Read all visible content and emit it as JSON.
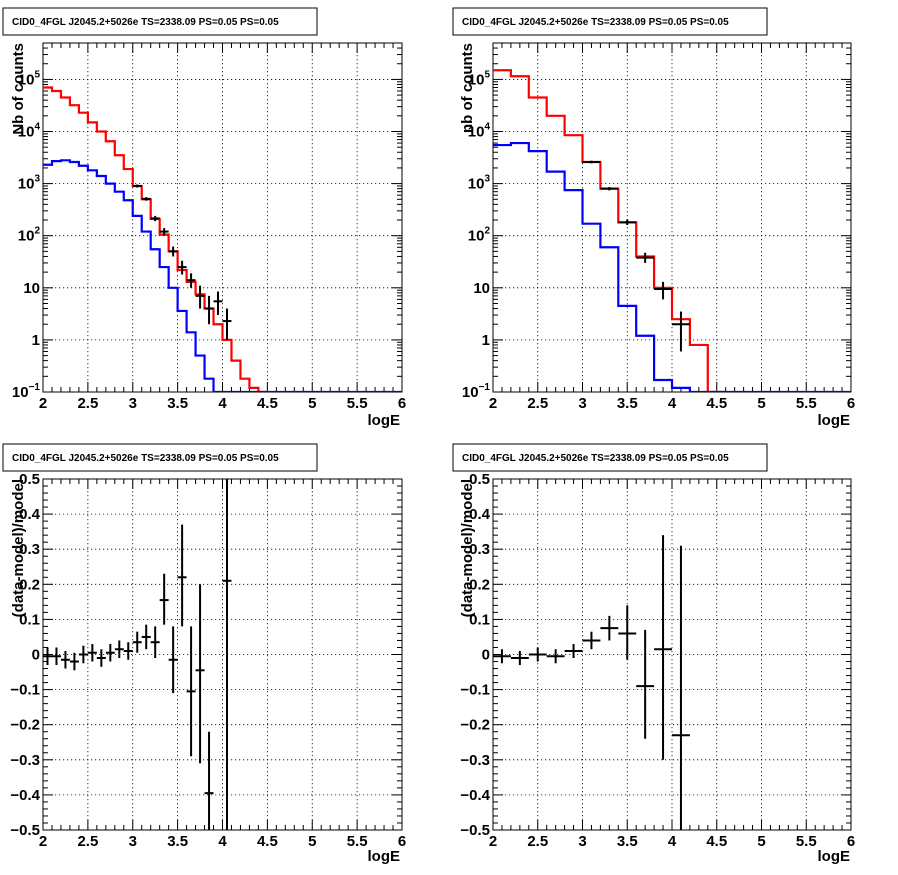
{
  "colors": {
    "data": "#000000",
    "model": "#ff0000",
    "background": "#0000ff",
    "grid": "#000000"
  },
  "chart_data": [
    {
      "id": "tl",
      "type": "line",
      "title": "CID0_4FGL J2045.2+5026e TS=2338.09 PS=0.05 PS=0.05",
      "xlabel": "logE",
      "ylabel": "Nb of counts",
      "log_y": true,
      "xlim": [
        2,
        6
      ],
      "ylim": [
        0.1,
        500000
      ],
      "grid": true,
      "x_ticks": [
        "2",
        "2.5",
        "3",
        "3.5",
        "4",
        "4.5",
        "5",
        "5.5",
        "6"
      ],
      "y_ticks": [
        {
          "value": 0.1,
          "base": "10",
          "exp": "−1"
        },
        {
          "value": 1,
          "label": "1"
        },
        {
          "value": 10,
          "label": "10"
        },
        {
          "value": 100,
          "base": "10",
          "exp": "2"
        },
        {
          "value": 1000,
          "base": "10",
          "exp": "3"
        },
        {
          "value": 10000,
          "base": "10",
          "exp": "4"
        },
        {
          "value": 100000,
          "base": "10",
          "exp": "5"
        }
      ],
      "series": [
        {
          "role": "model",
          "style": "step",
          "edges": [
            2,
            2.1,
            2.2,
            2.3,
            2.4,
            2.5,
            2.6,
            2.7,
            2.8,
            2.9,
            3,
            3.1,
            3.2,
            3.3,
            3.4,
            3.5,
            3.6,
            3.7,
            3.8,
            3.9,
            4,
            4.1,
            4.2,
            4.3,
            4.4,
            4.5
          ],
          "values": [
            70000,
            60000,
            45000,
            32000,
            23000,
            15000,
            10000,
            6500,
            3500,
            1900,
            900,
            500,
            210,
            105,
            50,
            22,
            13,
            7.5,
            4.0,
            2.0,
            1.0,
            0.4,
            0.18,
            0.12,
            0.1
          ]
        },
        {
          "role": "background",
          "style": "step",
          "edges": [
            2,
            2.1,
            2.2,
            2.3,
            2.4,
            2.5,
            2.6,
            2.7,
            2.8,
            2.9,
            3,
            3.1,
            3.2,
            3.3,
            3.4,
            3.5,
            3.6,
            3.7,
            3.8,
            3.9,
            4,
            4.1,
            4.2
          ],
          "values": [
            2300,
            2700,
            2800,
            2600,
            2200,
            1800,
            1400,
            1000,
            700,
            480,
            240,
            120,
            55,
            25,
            10,
            3.6,
            1.4,
            0.5,
            0.18,
            0.1,
            0.1,
            0.1
          ],
          "tail": {
            "from": 4.2,
            "to": 6,
            "value": 0.1
          }
        },
        {
          "role": "data",
          "style": "errorbar",
          "points": [
            {
              "x": 3.05,
              "y": 900,
              "xerr": 0.05,
              "ylo": 840,
              "yhi": 960
            },
            {
              "x": 3.15,
              "y": 510,
              "xerr": 0.05,
              "ylo": 470,
              "yhi": 550
            },
            {
              "x": 3.25,
              "y": 215,
              "xerr": 0.05,
              "ylo": 190,
              "yhi": 240
            },
            {
              "x": 3.35,
              "y": 120,
              "xerr": 0.05,
              "ylo": 100,
              "yhi": 140
            },
            {
              "x": 3.45,
              "y": 50,
              "xerr": 0.05,
              "ylo": 40,
              "yhi": 62
            },
            {
              "x": 3.55,
              "y": 25,
              "xerr": 0.05,
              "ylo": 18,
              "yhi": 33
            },
            {
              "x": 3.65,
              "y": 14,
              "xerr": 0.05,
              "ylo": 10,
              "yhi": 19
            },
            {
              "x": 3.75,
              "y": 7,
              "xerr": 0.05,
              "ylo": 4,
              "yhi": 11
            },
            {
              "x": 3.85,
              "y": 4,
              "xerr": 0.05,
              "ylo": 2,
              "yhi": 7
            },
            {
              "x": 3.95,
              "y": 5.5,
              "xerr": 0.05,
              "ylo": 3,
              "yhi": 8.5
            },
            {
              "x": 4.05,
              "y": 2.3,
              "xerr": 0.05,
              "ylo": 1,
              "yhi": 4
            }
          ]
        }
      ]
    },
    {
      "id": "tr",
      "type": "line",
      "title": "CID0_4FGL J2045.2+5026e TS=2338.09 PS=0.05 PS=0.05",
      "xlabel": "logE",
      "ylabel": "nb of counts",
      "log_y": true,
      "xlim": [
        2,
        6
      ],
      "ylim": [
        0.1,
        500000
      ],
      "grid": true,
      "x_ticks": [
        "2",
        "2.5",
        "3",
        "3.5",
        "4",
        "4.5",
        "5",
        "5.5",
        "6"
      ],
      "y_ticks": [
        {
          "value": 0.1,
          "base": "10",
          "exp": "−1"
        },
        {
          "value": 1,
          "label": "1"
        },
        {
          "value": 10,
          "label": "10"
        },
        {
          "value": 100,
          "base": "10",
          "exp": "2"
        },
        {
          "value": 1000,
          "base": "10",
          "exp": "3"
        },
        {
          "value": 10000,
          "base": "10",
          "exp": "4"
        },
        {
          "value": 100000,
          "base": "10",
          "exp": "5"
        }
      ],
      "series": [
        {
          "role": "model",
          "style": "step",
          "edges": [
            2,
            2.2,
            2.4,
            2.6,
            2.8,
            3,
            3.2,
            3.4,
            3.6,
            3.8,
            4,
            4.2,
            4.4,
            4.6
          ],
          "values": [
            150000,
            115000,
            45000,
            20000,
            8500,
            2600,
            800,
            180,
            40,
            10,
            2.5,
            0.8,
            0.1
          ]
        },
        {
          "role": "background",
          "style": "step",
          "edges": [
            2,
            2.2,
            2.4,
            2.6,
            2.8,
            3,
            3.2,
            3.4,
            3.6,
            3.8,
            4,
            4.2,
            4.4
          ],
          "values": [
            5500,
            6000,
            4200,
            1700,
            750,
            170,
            60,
            4.5,
            1.2,
            0.17,
            0.12,
            0.1
          ],
          "tail": {
            "from": 4.4,
            "to": 6,
            "value": 0.1
          }
        },
        {
          "role": "data",
          "style": "errorbar",
          "points": [
            {
              "x": 3.1,
              "y": 2600,
              "xerr": 0.1,
              "ylo": 2450,
              "yhi": 2750
            },
            {
              "x": 3.3,
              "y": 800,
              "xerr": 0.1,
              "ylo": 740,
              "yhi": 860
            },
            {
              "x": 3.5,
              "y": 180,
              "xerr": 0.1,
              "ylo": 160,
              "yhi": 205
            },
            {
              "x": 3.7,
              "y": 38,
              "xerr": 0.1,
              "ylo": 30,
              "yhi": 47
            },
            {
              "x": 3.9,
              "y": 9.5,
              "xerr": 0.1,
              "ylo": 6,
              "yhi": 13
            },
            {
              "x": 4.1,
              "y": 2.0,
              "xerr": 0.1,
              "ylo": 0.6,
              "yhi": 3.5
            }
          ]
        }
      ]
    },
    {
      "id": "bl",
      "type": "scatter",
      "title": "CID0_4FGL J2045.2+5026e TS=2338.09 PS=0.05 PS=0.05",
      "xlabel": "logE",
      "ylabel": "(data-model)/model",
      "log_y": false,
      "xlim": [
        2,
        6
      ],
      "ylim": [
        -0.5,
        0.5
      ],
      "grid": true,
      "x_ticks": [
        "2",
        "2.5",
        "3",
        "3.5",
        "4",
        "4.5",
        "5",
        "5.5",
        "6"
      ],
      "y_ticks": [
        {
          "value": -0.5,
          "label": "−0.5"
        },
        {
          "value": -0.4,
          "label": "−0.4"
        },
        {
          "value": -0.3,
          "label": "−0.3"
        },
        {
          "value": -0.2,
          "label": "−0.2"
        },
        {
          "value": -0.1,
          "label": "−0.1"
        },
        {
          "value": 0,
          "label": "0"
        },
        {
          "value": 0.1,
          "label": "0.1"
        },
        {
          "value": 0.2,
          "label": "0.2"
        },
        {
          "value": 0.3,
          "label": "0.3"
        },
        {
          "value": 0.4,
          "label": "0.4"
        },
        {
          "value": 0.5,
          "label": "0.5"
        }
      ],
      "series": [
        {
          "role": "data",
          "style": "errorbar",
          "points": [
            {
              "x": 2.05,
              "y": -0.005,
              "xerr": 0.05,
              "ylo": -0.03,
              "yhi": 0.02
            },
            {
              "x": 2.15,
              "y": -0.005,
              "xerr": 0.05,
              "ylo": -0.03,
              "yhi": 0.02
            },
            {
              "x": 2.25,
              "y": -0.015,
              "xerr": 0.05,
              "ylo": -0.04,
              "yhi": 0.01
            },
            {
              "x": 2.35,
              "y": -0.02,
              "xerr": 0.05,
              "ylo": -0.045,
              "yhi": 0.005
            },
            {
              "x": 2.45,
              "y": 0.0,
              "xerr": 0.05,
              "ylo": -0.025,
              "yhi": 0.025
            },
            {
              "x": 2.55,
              "y": 0.005,
              "xerr": 0.05,
              "ylo": -0.02,
              "yhi": 0.03
            },
            {
              "x": 2.65,
              "y": -0.01,
              "xerr": 0.05,
              "ylo": -0.035,
              "yhi": 0.015
            },
            {
              "x": 2.75,
              "y": 0.005,
              "xerr": 0.05,
              "ylo": -0.02,
              "yhi": 0.03
            },
            {
              "x": 2.85,
              "y": 0.015,
              "xerr": 0.05,
              "ylo": -0.01,
              "yhi": 0.04
            },
            {
              "x": 2.95,
              "y": 0.01,
              "xerr": 0.05,
              "ylo": -0.015,
              "yhi": 0.035
            },
            {
              "x": 3.05,
              "y": 0.035,
              "xerr": 0.05,
              "ylo": 0.005,
              "yhi": 0.065
            },
            {
              "x": 3.15,
              "y": 0.05,
              "xerr": 0.05,
              "ylo": 0.015,
              "yhi": 0.085
            },
            {
              "x": 3.25,
              "y": 0.035,
              "xerr": 0.05,
              "ylo": -0.01,
              "yhi": 0.08
            },
            {
              "x": 3.35,
              "y": 0.155,
              "xerr": 0.05,
              "ylo": 0.085,
              "yhi": 0.23
            },
            {
              "x": 3.45,
              "y": -0.015,
              "xerr": 0.05,
              "ylo": -0.11,
              "yhi": 0.08
            },
            {
              "x": 3.55,
              "y": 0.22,
              "xerr": 0.05,
              "ylo": 0.08,
              "yhi": 0.37
            },
            {
              "x": 3.65,
              "y": -0.105,
              "xerr": 0.05,
              "ylo": -0.29,
              "yhi": 0.08
            },
            {
              "x": 3.75,
              "y": -0.045,
              "xerr": 0.05,
              "ylo": -0.31,
              "yhi": 0.2
            },
            {
              "x": 3.85,
              "y": -0.395,
              "xerr": 0.05,
              "ylo": -0.5,
              "yhi": -0.22
            },
            {
              "x": 4.05,
              "y": 0.21,
              "xerr": 0.05,
              "ylo": -0.5,
              "yhi": 0.5
            }
          ]
        }
      ]
    },
    {
      "id": "br",
      "type": "scatter",
      "title": "CID0_4FGL J2045.2+5026e TS=2338.09 PS=0.05 PS=0.05",
      "xlabel": "logE",
      "ylabel": "(data-model)/model",
      "log_y": false,
      "xlim": [
        2,
        6
      ],
      "ylim": [
        -0.5,
        0.5
      ],
      "grid": true,
      "x_ticks": [
        "2",
        "2.5",
        "3",
        "3.5",
        "4",
        "4.5",
        "5",
        "5.5",
        "6"
      ],
      "y_ticks": [
        {
          "value": -0.5,
          "label": "−0.5"
        },
        {
          "value": -0.4,
          "label": "−0.4"
        },
        {
          "value": -0.3,
          "label": "−0.3"
        },
        {
          "value": -0.2,
          "label": "−0.2"
        },
        {
          "value": -0.1,
          "label": "−0.1"
        },
        {
          "value": 0,
          "label": "0"
        },
        {
          "value": 0.1,
          "label": "0.1"
        },
        {
          "value": 0.2,
          "label": "0.2"
        },
        {
          "value": 0.3,
          "label": "0.3"
        },
        {
          "value": 0.4,
          "label": "0.4"
        },
        {
          "value": 0.5,
          "label": "0.5"
        }
      ],
      "series": [
        {
          "role": "data",
          "style": "errorbar",
          "points": [
            {
              "x": 2.1,
              "y": -0.005,
              "xerr": 0.1,
              "ylo": -0.025,
              "yhi": 0.015
            },
            {
              "x": 2.3,
              "y": -0.01,
              "xerr": 0.1,
              "ylo": -0.03,
              "yhi": 0.01
            },
            {
              "x": 2.5,
              "y": 0.0,
              "xerr": 0.1,
              "ylo": -0.02,
              "yhi": 0.02
            },
            {
              "x": 2.7,
              "y": -0.005,
              "xerr": 0.1,
              "ylo": -0.025,
              "yhi": 0.015
            },
            {
              "x": 2.9,
              "y": 0.01,
              "xerr": 0.1,
              "ylo": -0.01,
              "yhi": 0.03
            },
            {
              "x": 3.1,
              "y": 0.04,
              "xerr": 0.1,
              "ylo": 0.015,
              "yhi": 0.065
            },
            {
              "x": 3.3,
              "y": 0.075,
              "xerr": 0.1,
              "ylo": 0.04,
              "yhi": 0.11
            },
            {
              "x": 3.5,
              "y": 0.06,
              "xerr": 0.1,
              "ylo": -0.015,
              "yhi": 0.14
            },
            {
              "x": 3.7,
              "y": -0.09,
              "xerr": 0.1,
              "ylo": -0.24,
              "yhi": 0.07
            },
            {
              "x": 3.9,
              "y": 0.015,
              "xerr": 0.1,
              "ylo": -0.3,
              "yhi": 0.34
            },
            {
              "x": 4.1,
              "y": -0.23,
              "xerr": 0.1,
              "ylo": -0.5,
              "yhi": 0.31
            }
          ]
        }
      ]
    }
  ]
}
